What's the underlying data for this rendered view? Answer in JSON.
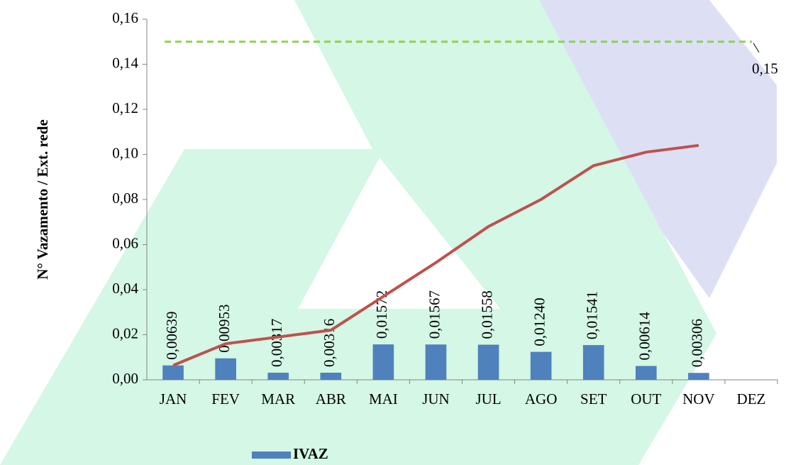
{
  "chart_data": {
    "type": "bar",
    "ylabel": "N° Vazamento / Ext. rede",
    "categories": [
      "JAN",
      "FEV",
      "MAR",
      "ABR",
      "MAI",
      "JUN",
      "JUL",
      "AGO",
      "SET",
      "OUT",
      "NOV",
      "DEZ"
    ],
    "series": [
      {
        "name": "IVAZ",
        "type": "bar",
        "color": "#4f81bd",
        "values": [
          0.00639,
          0.00953,
          0.00317,
          0.00316,
          0.01572,
          0.01567,
          0.01558,
          0.0124,
          0.01541,
          0.00614,
          0.00306,
          null
        ],
        "value_labels": [
          "0,00639",
          "0,00953",
          "0,00317",
          "0,00316",
          "0,01572",
          "0,01567",
          "0,01558",
          "0,01240",
          "0,01541",
          "0,00614",
          "0,00306",
          null
        ]
      },
      {
        "type": "line",
        "color": "#c0504d",
        "values": [
          0.0064,
          0.016,
          0.019,
          0.022,
          0.037,
          0.052,
          0.068,
          0.08,
          0.095,
          0.101,
          0.104,
          null
        ]
      }
    ],
    "target": {
      "value": 0.15,
      "label": "0,15",
      "color": "#92d050"
    },
    "ylim": [
      0,
      0.16
    ],
    "yticks": [
      {
        "value": 0,
        "label": "0,00"
      },
      {
        "value": 0.02,
        "label": "0,02"
      },
      {
        "value": 0.04,
        "label": "0,04"
      },
      {
        "value": 0.06,
        "label": "0,06"
      },
      {
        "value": 0.08,
        "label": "0,08"
      },
      {
        "value": 0.1,
        "label": "0,10"
      },
      {
        "value": 0.12,
        "label": "0,12"
      },
      {
        "value": 0.14,
        "label": "0,14"
      },
      {
        "value": 0.16,
        "label": "0,16"
      }
    ],
    "legend": "bottom"
  }
}
